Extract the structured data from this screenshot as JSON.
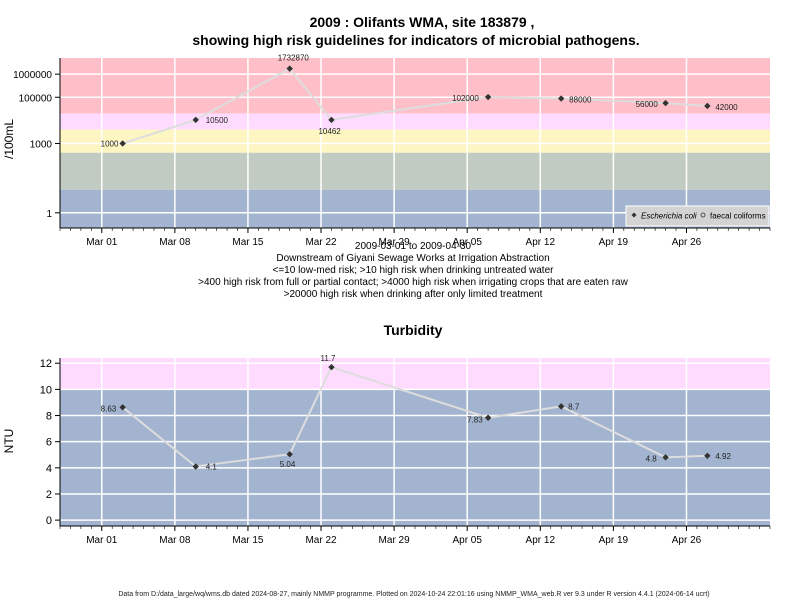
{
  "colors": {
    "band_blue": "#a2b4cf",
    "band_green": "#c2cbc2",
    "band_yellow": "#fdf6c2",
    "band_pink": "#ffdcff",
    "band_red": "#ffbfc9",
    "line": "#dddddd",
    "point": "#333333",
    "grid": "#ffffff",
    "legend_bg": "#d3d3d3"
  },
  "x_ticks": [
    "Mar 01",
    "Mar 08",
    "Mar 15",
    "Mar 22",
    "Mar 29",
    "Apr 05",
    "Apr 12",
    "Apr 19",
    "Apr 26"
  ],
  "footer": "Data from D:/data_large/wq/wms.db dated 2024-08-27, mainly NMMP programme. Plotted on 2024-10-24 22:01:16 using NMMP_WMA_web.R ver 9.3 under R version 4.4.1 (2024-06-14 ucrt)",
  "chart_data": [
    {
      "type": "line",
      "title": "2009 : Olifants WMA, site 183879 ,",
      "subtitle": "showing high risk guidelines for indicators of microbial pathogens.",
      "ylabel": "/100mL",
      "y_scale": "log",
      "xlim": [
        "2009-02-25",
        "2009-05-04"
      ],
      "ylim": [
        0.22,
        5000000
      ],
      "y_ticks": [
        {
          "value": 1,
          "label": "1"
        },
        {
          "value": 1000,
          "label": "1000"
        },
        {
          "value": 100000,
          "label": "100000"
        },
        {
          "value": 1000000,
          "label": "1000000"
        }
      ],
      "bands": [
        {
          "from": 0.22,
          "to": 10,
          "color": "#a2b4cf"
        },
        {
          "from": 10,
          "to": 400,
          "color": "#c2cbc2"
        },
        {
          "from": 400,
          "to": 4000,
          "color": "#fdf6c2"
        },
        {
          "from": 4000,
          "to": 20000,
          "color": "#ffdcff"
        },
        {
          "from": 20000,
          "to": 5000000,
          "color": "#ffbfc9"
        }
      ],
      "grid": true,
      "legend_position": "bottom-right",
      "captions": [
        "2009-03-01 to 2009-04-30",
        "Downstream of Giyani Sewage Works at Irrigation Abstraction",
        "<=10 low-med risk; >10 high risk when drinking untreated water",
        ">400 high risk from full or partial contact; >4000 high risk when irrigating crops that are eaten raw",
        ">20000 high risk when drinking after only limited treatment"
      ],
      "series": [
        {
          "name": "Escherichia coli",
          "marker": "diamond",
          "points": [
            {
              "x": "2009-03-03",
              "y": 1000,
              "label": "1000"
            },
            {
              "x": "2009-03-10",
              "y": 10500,
              "label": "10500"
            },
            {
              "x": "2009-03-19",
              "y": 1732870,
              "label": "1732870"
            },
            {
              "x": "2009-03-23",
              "y": 10462,
              "label": "10462"
            },
            {
              "x": "2009-04-07",
              "y": 102000,
              "label": "102000"
            },
            {
              "x": "2009-04-14",
              "y": 88000,
              "label": "88000"
            },
            {
              "x": "2009-04-24",
              "y": 56000,
              "label": "56000"
            },
            {
              "x": "2009-04-28",
              "y": 42000,
              "label": "42000"
            }
          ]
        },
        {
          "name": "faecal coliforms",
          "marker": "circle",
          "points": []
        }
      ]
    },
    {
      "type": "line",
      "title": "Turbidity",
      "ylabel": "NTU",
      "y_scale": "linear",
      "xlim": [
        "2009-02-25",
        "2009-05-04"
      ],
      "ylim": [
        -0.45,
        12.4
      ],
      "y_ticks": [
        {
          "value": 0,
          "label": "0"
        },
        {
          "value": 2,
          "label": "2"
        },
        {
          "value": 4,
          "label": "4"
        },
        {
          "value": 6,
          "label": "6"
        },
        {
          "value": 8,
          "label": "8"
        },
        {
          "value": 10,
          "label": "10"
        },
        {
          "value": 12,
          "label": "12"
        }
      ],
      "bands": [
        {
          "from": -0.45,
          "to": 10,
          "color": "#a2b4cf"
        },
        {
          "from": 10,
          "to": 12.4,
          "color": "#ffdcff"
        }
      ],
      "grid": true,
      "series": [
        {
          "name": "",
          "marker": "diamond",
          "points": [
            {
              "x": "2009-03-03",
              "y": 8.63,
              "label": "8.63"
            },
            {
              "x": "2009-03-10",
              "y": 4.1,
              "label": "4.1"
            },
            {
              "x": "2009-03-19",
              "y": 5.04,
              "label": "5.04"
            },
            {
              "x": "2009-03-23",
              "y": 11.7,
              "label": "11.7"
            },
            {
              "x": "2009-04-07",
              "y": 7.83,
              "label": "7.83"
            },
            {
              "x": "2009-04-14",
              "y": 8.7,
              "label": "8.7"
            },
            {
              "x": "2009-04-24",
              "y": 4.8,
              "label": "4.8"
            },
            {
              "x": "2009-04-28",
              "y": 4.92,
              "label": "4.92"
            }
          ]
        }
      ]
    }
  ]
}
